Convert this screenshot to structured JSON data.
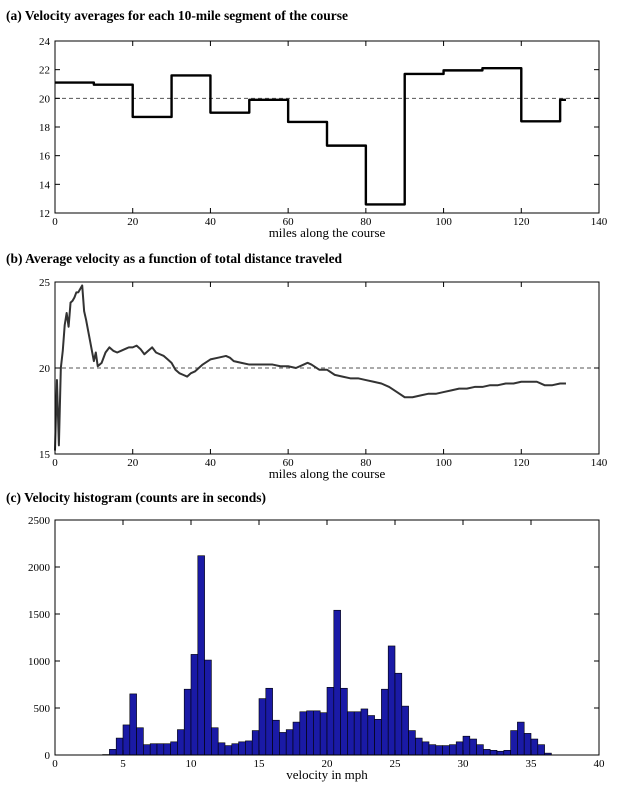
{
  "figure": {
    "background": "#ffffff",
    "axis_color": "#000000",
    "reference_line_color": "#555555"
  },
  "chart_data": [
    {
      "id": "a",
      "type": "line",
      "step": true,
      "title": "(a) Velocity averages for each 10-mile segment of the course",
      "xlabel": "miles along the course",
      "ylabel": "",
      "xlim": [
        0,
        140
      ],
      "ylim": [
        12,
        24
      ],
      "xticks": [
        0,
        20,
        40,
        60,
        80,
        100,
        120,
        140
      ],
      "yticks": [
        12,
        14,
        16,
        18,
        20,
        22,
        24
      ],
      "grid": false,
      "reference_line": 20,
      "line_color": "#000000",
      "series": [
        {
          "x": [
            0,
            10,
            20,
            30,
            40,
            50,
            60,
            70,
            80,
            90,
            100,
            110,
            120,
            130,
            131.5
          ],
          "y": [
            21.1,
            20.95,
            18.7,
            21.6,
            19.0,
            19.9,
            18.35,
            16.7,
            12.6,
            21.7,
            21.95,
            22.1,
            18.4,
            19.9,
            19.9
          ]
        }
      ]
    },
    {
      "id": "b",
      "type": "line",
      "title": "(b) Average velocity as a function of total distance traveled",
      "xlabel": "miles along the course",
      "ylabel": "",
      "xlim": [
        0,
        140
      ],
      "ylim": [
        15,
        25
      ],
      "xticks": [
        0,
        20,
        40,
        60,
        80,
        100,
        120,
        140
      ],
      "yticks": [
        15,
        20,
        25
      ],
      "grid": false,
      "reference_line": 20,
      "line_color": "#333333",
      "series": [
        {
          "x": [
            0,
            0.5,
            1,
            1.5,
            2,
            2.5,
            3,
            3.5,
            4,
            4.5,
            5,
            5.5,
            6,
            6.5,
            7,
            7.5,
            8,
            8.5,
            9,
            9.5,
            10,
            10.5,
            11,
            12,
            13,
            14,
            15,
            16,
            17,
            18,
            19,
            20,
            21,
            22,
            23,
            24,
            25,
            26,
            27,
            28,
            29,
            30,
            31,
            32,
            33,
            34,
            35,
            36,
            38,
            40,
            42,
            44,
            45,
            46,
            48,
            50,
            52,
            54,
            56,
            58,
            60,
            62,
            64,
            65,
            66,
            68,
            70,
            72,
            74,
            76,
            78,
            80,
            82,
            84,
            86,
            88,
            90,
            92,
            94,
            96,
            98,
            100,
            102,
            104,
            106,
            108,
            110,
            112,
            114,
            116,
            118,
            120,
            122,
            124,
            126,
            128,
            130,
            131.5
          ],
          "y": [
            15.2,
            19.3,
            15.5,
            20.0,
            21.0,
            22.5,
            23.2,
            22.4,
            23.8,
            23.9,
            24.1,
            24.4,
            24.4,
            24.6,
            24.8,
            23.3,
            22.8,
            22.2,
            21.6,
            21.0,
            20.4,
            20.9,
            20.1,
            20.3,
            20.9,
            21.2,
            21.0,
            20.9,
            21.0,
            21.1,
            21.2,
            21.2,
            21.3,
            21.1,
            20.8,
            21.0,
            21.2,
            20.9,
            20.8,
            20.7,
            20.5,
            20.3,
            19.9,
            19.7,
            19.6,
            19.5,
            19.7,
            19.8,
            20.2,
            20.5,
            20.6,
            20.7,
            20.6,
            20.4,
            20.3,
            20.2,
            20.2,
            20.2,
            20.2,
            20.1,
            20.1,
            20.0,
            20.2,
            20.3,
            20.2,
            19.9,
            19.9,
            19.6,
            19.5,
            19.4,
            19.4,
            19.3,
            19.2,
            19.1,
            18.9,
            18.6,
            18.3,
            18.3,
            18.4,
            18.5,
            18.5,
            18.6,
            18.7,
            18.8,
            18.8,
            18.9,
            18.9,
            19.0,
            19.0,
            19.1,
            19.1,
            19.2,
            19.2,
            19.2,
            19.0,
            19.0,
            19.1,
            19.1
          ]
        }
      ]
    },
    {
      "id": "c",
      "type": "bar",
      "title": "(c) Velocity histogram (counts are in seconds)",
      "xlabel": "velocity in mph",
      "ylabel": "",
      "xlim": [
        0,
        40
      ],
      "ylim": [
        0,
        2500
      ],
      "xticks": [
        0,
        5,
        10,
        15,
        20,
        25,
        30,
        35,
        40
      ],
      "yticks": [
        0,
        500,
        1000,
        1500,
        2000,
        2500
      ],
      "grid": false,
      "bar_color": "#1a1aa6",
      "bar_edge_color": "#000000",
      "bin_width": 0.5,
      "bin_start": 0,
      "values": [
        0,
        0,
        0,
        0,
        0,
        0,
        0,
        5,
        60,
        180,
        320,
        650,
        290,
        110,
        120,
        120,
        120,
        140,
        270,
        700,
        1070,
        2120,
        1010,
        290,
        130,
        100,
        120,
        140,
        150,
        260,
        600,
        710,
        370,
        240,
        270,
        350,
        460,
        470,
        470,
        450,
        720,
        1540,
        710,
        460,
        460,
        490,
        420,
        380,
        700,
        1160,
        870,
        520,
        260,
        180,
        140,
        110,
        100,
        100,
        110,
        140,
        200,
        170,
        110,
        60,
        50,
        40,
        50,
        260,
        350,
        230,
        170,
        110,
        20,
        0,
        0,
        0,
        0,
        0,
        0,
        0
      ]
    }
  ]
}
